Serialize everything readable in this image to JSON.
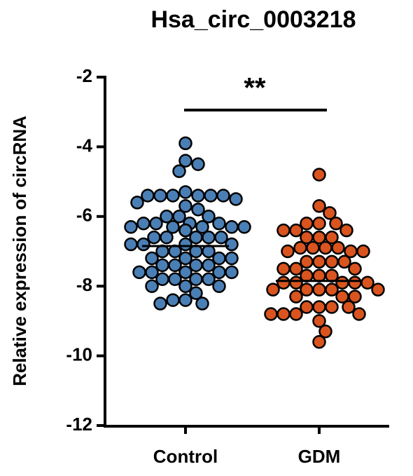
{
  "chart_data": {
    "type": "scatter",
    "title": "Hsa_circ_0003218",
    "y_label": "Relative expression of circRNA",
    "ylim": [
      -12,
      -2
    ],
    "yticks": [
      -12,
      -10,
      -8,
      -6,
      -4,
      -2
    ],
    "annotation": "**",
    "series": [
      {
        "name": "Control",
        "color": "#4a7fb5",
        "mean": -6.85,
        "values": [
          -3.9,
          -4.4,
          -4.5,
          -4.7,
          -5.3,
          -5.4,
          -5.4,
          -5.4,
          -5.4,
          -5.4,
          -5.4,
          -5.5,
          -5.6,
          -5.7,
          -5.8,
          -6.0,
          -6.0,
          -6.0,
          -6.2,
          -6.2,
          -6.2,
          -6.2,
          -6.3,
          -6.3,
          -6.3,
          -6.3,
          -6.3,
          -6.4,
          -6.4,
          -6.4,
          -6.4,
          -6.6,
          -6.6,
          -6.6,
          -6.6,
          -6.6,
          -6.8,
          -6.8,
          -6.8,
          -6.8,
          -7.0,
          -7.0,
          -7.0,
          -7.0,
          -7.2,
          -7.2,
          -7.2,
          -7.2,
          -7.4,
          -7.4,
          -7.4,
          -7.4,
          -7.6,
          -7.6,
          -7.6,
          -7.6,
          -7.6,
          -7.8,
          -7.8,
          -7.8,
          -7.8,
          -8.0,
          -8.0,
          -8.0,
          -8.2,
          -8.4,
          -8.4,
          -8.5,
          -8.5
        ]
      },
      {
        "name": "GDM",
        "color": "#d9541e",
        "mean": -7.85,
        "values": [
          -4.8,
          -5.7,
          -5.9,
          -6.2,
          -6.2,
          -6.2,
          -6.4,
          -6.4,
          -6.4,
          -6.6,
          -6.6,
          -6.6,
          -6.9,
          -6.9,
          -6.9,
          -6.9,
          -7.0,
          -7.0,
          -7.0,
          -7.3,
          -7.3,
          -7.3,
          -7.3,
          -7.5,
          -7.5,
          -7.5,
          -7.7,
          -7.7,
          -7.7,
          -7.9,
          -7.9,
          -7.9,
          -7.9,
          -7.9,
          -8.1,
          -8.1,
          -8.1,
          -8.1,
          -8.1,
          -8.3,
          -8.3,
          -8.3,
          -8.6,
          -8.6,
          -8.6,
          -8.6,
          -8.8,
          -8.8,
          -8.8,
          -8.8,
          -9.0,
          -9.3,
          -9.6
        ]
      }
    ]
  }
}
